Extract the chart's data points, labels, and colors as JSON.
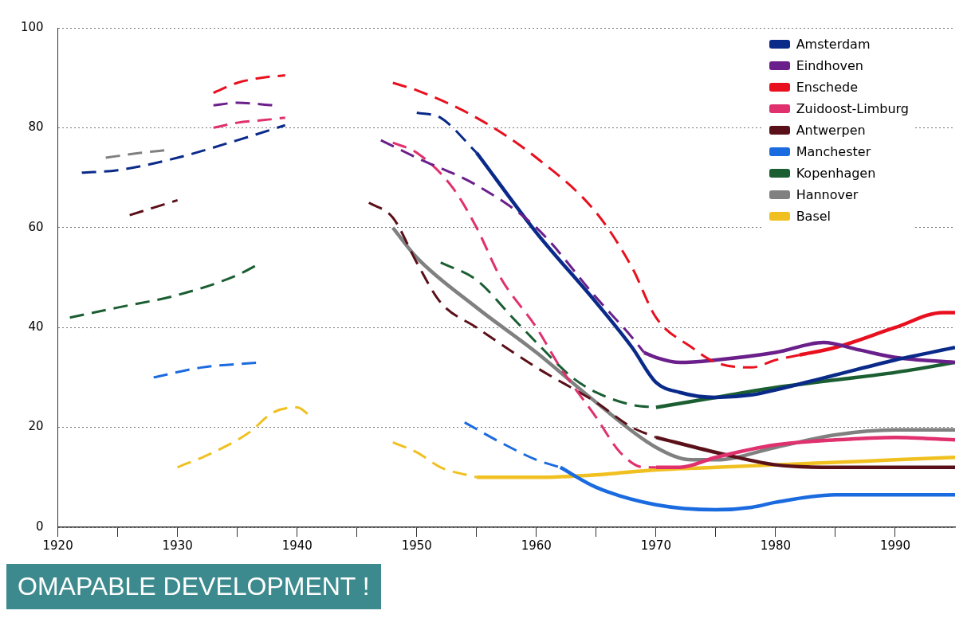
{
  "chart_data": {
    "type": "line",
    "xlim": [
      1920,
      1995
    ],
    "ylim": [
      0,
      100
    ],
    "xticks": [
      1920,
      {
        "value": 1925,
        "label": null
      },
      1930,
      {
        "value": 1935,
        "label": null
      },
      1940,
      {
        "value": 1945,
        "label": null
      },
      1950,
      {
        "value": 1955,
        "label": null
      },
      1960,
      {
        "value": 1965,
        "label": null
      },
      1970,
      {
        "value": 1975,
        "label": null
      },
      1980,
      {
        "value": 1985,
        "label": null
      },
      1990
    ],
    "yticks": [
      0,
      20,
      40,
      60,
      80,
      100
    ],
    "grid": "y",
    "legend": "top right",
    "marker": "none",
    "annotations": [
      "OMAPABLE DEVELOPMENT !"
    ],
    "series": [
      {
        "name": "Amsterdam",
        "color": "#0a2a8a",
        "line_style": "dashed",
        "x": [
          1922,
          1925,
          1930,
          1935,
          1939,
          1945,
          1950,
          1952,
          1955
        ],
        "values": [
          71,
          71.5,
          74,
          77.5,
          80.5,
          null,
          83,
          82,
          75
        ]
      },
      {
        "name": "Eindhoven",
        "color": "#6a1f8a",
        "line_style": "dashed",
        "x": [
          1933,
          1935,
          1938,
          1942,
          1947,
          1950,
          1955,
          1960,
          1965,
          1968,
          1969
        ],
        "values": [
          84.5,
          85,
          84.5,
          null,
          77.5,
          74,
          68.5,
          60,
          46,
          38,
          35
        ]
      },
      {
        "name": "Enschede",
        "color": "#e8101e",
        "line_style": "dashed",
        "x": [
          1933,
          1935,
          1937,
          1939,
          1944,
          1948,
          1950,
          1955,
          1960,
          1965,
          1968,
          1970,
          1973,
          1975,
          1978,
          1980,
          1982
        ],
        "values": [
          87,
          89,
          90,
          90.5,
          null,
          89,
          87.5,
          82,
          74,
          63,
          52,
          42,
          36,
          33,
          32,
          33.5,
          34.5
        ]
      },
      {
        "name": "Zuidoost-Limburg",
        "color": "#e0306e",
        "line_style": "dashed",
        "x": [
          1933,
          1935,
          1937,
          1939,
          1944,
          1948,
          1950,
          1953,
          1955,
          1957,
          1960,
          1962,
          1965,
          1967,
          1969,
          1970
        ],
        "values": [
          80,
          81,
          81.5,
          82,
          null,
          77,
          75,
          68,
          60,
          50,
          40,
          32,
          22,
          15,
          12,
          12
        ]
      },
      {
        "name": "Antwerpen",
        "color": "#5a1018",
        "line_style": "dashed",
        "x": [
          1926,
          1930,
          1940,
          1946,
          1948,
          1950,
          1952,
          1955,
          1960,
          1965,
          1968,
          1970
        ],
        "values": [
          62.5,
          65.5,
          null,
          65,
          62,
          53,
          45,
          40,
          32,
          25,
          20,
          18
        ]
      },
      {
        "name": "Manchester",
        "color": "#1a6ae0",
        "line_style": "dashed",
        "x": [
          1928,
          1932,
          1937,
          1945,
          1954,
          1957,
          1960,
          1962
        ],
        "values": [
          30,
          32,
          33,
          null,
          21,
          17,
          13.5,
          12
        ]
      },
      {
        "name": "Kopenhagen",
        "color": "#1a5e32",
        "line_style": "dashed",
        "x": [
          1921,
          1925,
          1930,
          1935,
          1937,
          1945,
          1952,
          1955,
          1958,
          1960,
          1963,
          1965,
          1968,
          1970
        ],
        "values": [
          42,
          44,
          46.5,
          50.5,
          53,
          null,
          53,
          49.5,
          42,
          37,
          30,
          27,
          24.5,
          24
        ]
      },
      {
        "name": "Hannover",
        "color": "#808080",
        "line_style": "dashed",
        "x": [
          1924,
          1927,
          1929
        ],
        "values": [
          74,
          75,
          75.5
        ]
      },
      {
        "name": "Basel",
        "color": "#f0c020",
        "line_style": "dashed",
        "x": [
          1930,
          1933,
          1936,
          1938,
          1940,
          1941,
          1945,
          1948,
          1950,
          1952,
          1955
        ],
        "values": [
          12,
          15,
          19,
          23,
          24,
          22.5,
          null,
          17,
          15,
          12,
          10
        ]
      },
      {
        "color": "#0a2a8a",
        "line_style": "solid",
        "x": [
          1955,
          1960,
          1965,
          1968,
          1970,
          1972,
          1975,
          1978,
          1980,
          1985,
          1990,
          1995
        ],
        "values": [
          75,
          59,
          45,
          36,
          29,
          27,
          26,
          26.5,
          27.5,
          30.5,
          33.5,
          36
        ]
      },
      {
        "color": "#6a1f8a",
        "line_style": "solid",
        "x": [
          1969,
          1970,
          1972,
          1975,
          1980,
          1984,
          1987,
          1990,
          1995
        ],
        "values": [
          35,
          34,
          33,
          33.5,
          35,
          37,
          35.5,
          34,
          33
        ]
      },
      {
        "color": "#e8101e",
        "line_style": "solid",
        "x": [
          1982,
          1985,
          1990,
          1994,
          1995
        ],
        "values": [
          34.5,
          36,
          40,
          43,
          43
        ]
      },
      {
        "color": "#e0306e",
        "line_style": "solid",
        "x": [
          1970,
          1972,
          1975,
          1980,
          1985,
          1990,
          1995
        ],
        "values": [
          12,
          12,
          14,
          16.5,
          17.5,
          18,
          17.5
        ]
      },
      {
        "color": "#5a1018",
        "line_style": "solid",
        "x": [
          1970,
          1975,
          1980,
          1985,
          1990,
          1995
        ],
        "values": [
          18,
          15,
          12.5,
          12,
          12,
          12
        ]
      },
      {
        "color": "#1a6ae0",
        "line_style": "solid",
        "x": [
          1962,
          1965,
          1970,
          1975,
          1978,
          1980,
          1985,
          1990,
          1995
        ],
        "values": [
          12,
          8,
          4.5,
          3.5,
          4,
          5,
          6.5,
          6.5,
          6.5
        ]
      },
      {
        "color": "#1a5e32",
        "line_style": "solid",
        "x": [
          1970,
          1975,
          1980,
          1985,
          1990,
          1995
        ],
        "values": [
          24,
          26,
          28,
          29.5,
          31,
          33
        ]
      },
      {
        "color": "#808080",
        "line_style": "solid",
        "x": [
          1948,
          1950,
          1955,
          1960,
          1965,
          1970,
          1973,
          1975,
          1980,
          1985,
          1990,
          1995
        ],
        "values": [
          60,
          54,
          44,
          35,
          25,
          16,
          13.5,
          13.5,
          16,
          18.5,
          19.5,
          19.5
        ]
      },
      {
        "color": "#f0c020",
        "line_style": "solid",
        "x": [
          1955,
          1960,
          1965,
          1970,
          1975,
          1980,
          1985,
          1990,
          1995
        ],
        "values": [
          10,
          10,
          10.5,
          11.5,
          12,
          12.5,
          13,
          13.5,
          14
        ]
      }
    ]
  }
}
